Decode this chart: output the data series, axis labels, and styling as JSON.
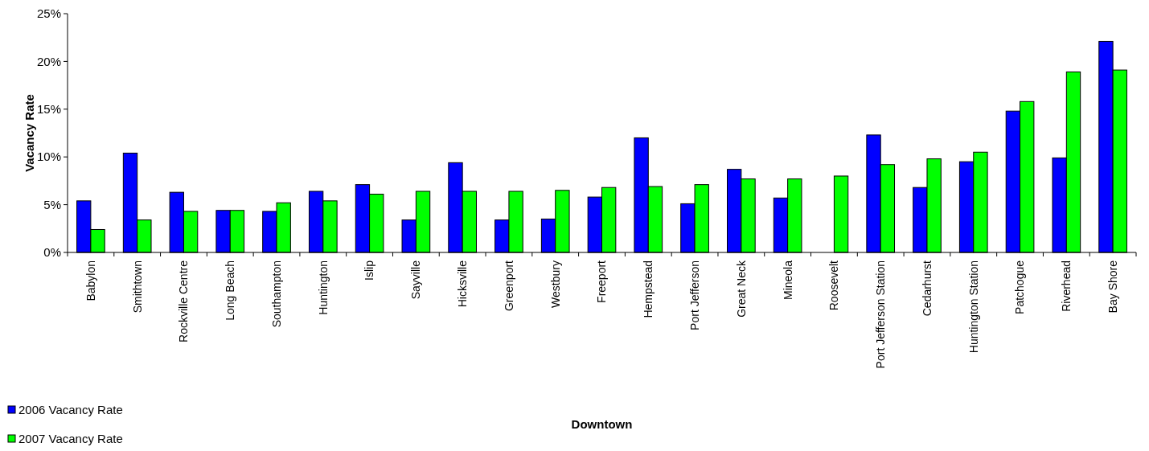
{
  "chart_data": {
    "type": "bar",
    "xlabel": "Downtown",
    "ylabel": "Vacancy Rate",
    "categories": [
      "Babylon",
      "Smithtown",
      "Rockville Centre",
      "Long Beach",
      "Southampton",
      "Huntington",
      "Islip",
      "Sayville",
      "Hicksville",
      "Greenport",
      "Westbury",
      "Freeport",
      "Hempstead",
      "Port Jefferson",
      "Great Neck",
      "Mineola",
      "Roosevelt",
      "Port Jefferson Station",
      "Cedarhurst",
      "Huntington Station",
      "Patchogue",
      "Riverhead",
      "Bay Shore"
    ],
    "series": [
      {
        "name": "2006 Vacancy Rate",
        "color": "#0000ff",
        "values": [
          5.4,
          10.4,
          6.3,
          4.4,
          4.3,
          6.4,
          7.1,
          3.4,
          9.4,
          3.4,
          3.5,
          5.8,
          12.0,
          5.1,
          8.7,
          5.7,
          null,
          12.3,
          6.8,
          9.5,
          14.8,
          9.9,
          22.1
        ]
      },
      {
        "name": "2007 Vacancy Rate",
        "color": "#00ff00",
        "values": [
          2.4,
          3.4,
          4.3,
          4.4,
          5.2,
          5.4,
          6.1,
          6.4,
          6.4,
          6.4,
          6.5,
          6.8,
          6.9,
          7.1,
          7.7,
          7.7,
          8.0,
          9.2,
          9.8,
          10.5,
          15.8,
          18.9,
          19.1
        ]
      }
    ],
    "ylim": [
      0,
      25
    ],
    "yticks": [
      {
        "value": 0,
        "label": "0%"
      },
      {
        "value": 5,
        "label": "5%"
      },
      {
        "value": 10,
        "label": "10%"
      },
      {
        "value": 15,
        "label": "15%"
      },
      {
        "value": 20,
        "label": "20%"
      },
      {
        "value": 25,
        "label": "25%"
      }
    ],
    "grid": false,
    "legend": "bottom left"
  }
}
